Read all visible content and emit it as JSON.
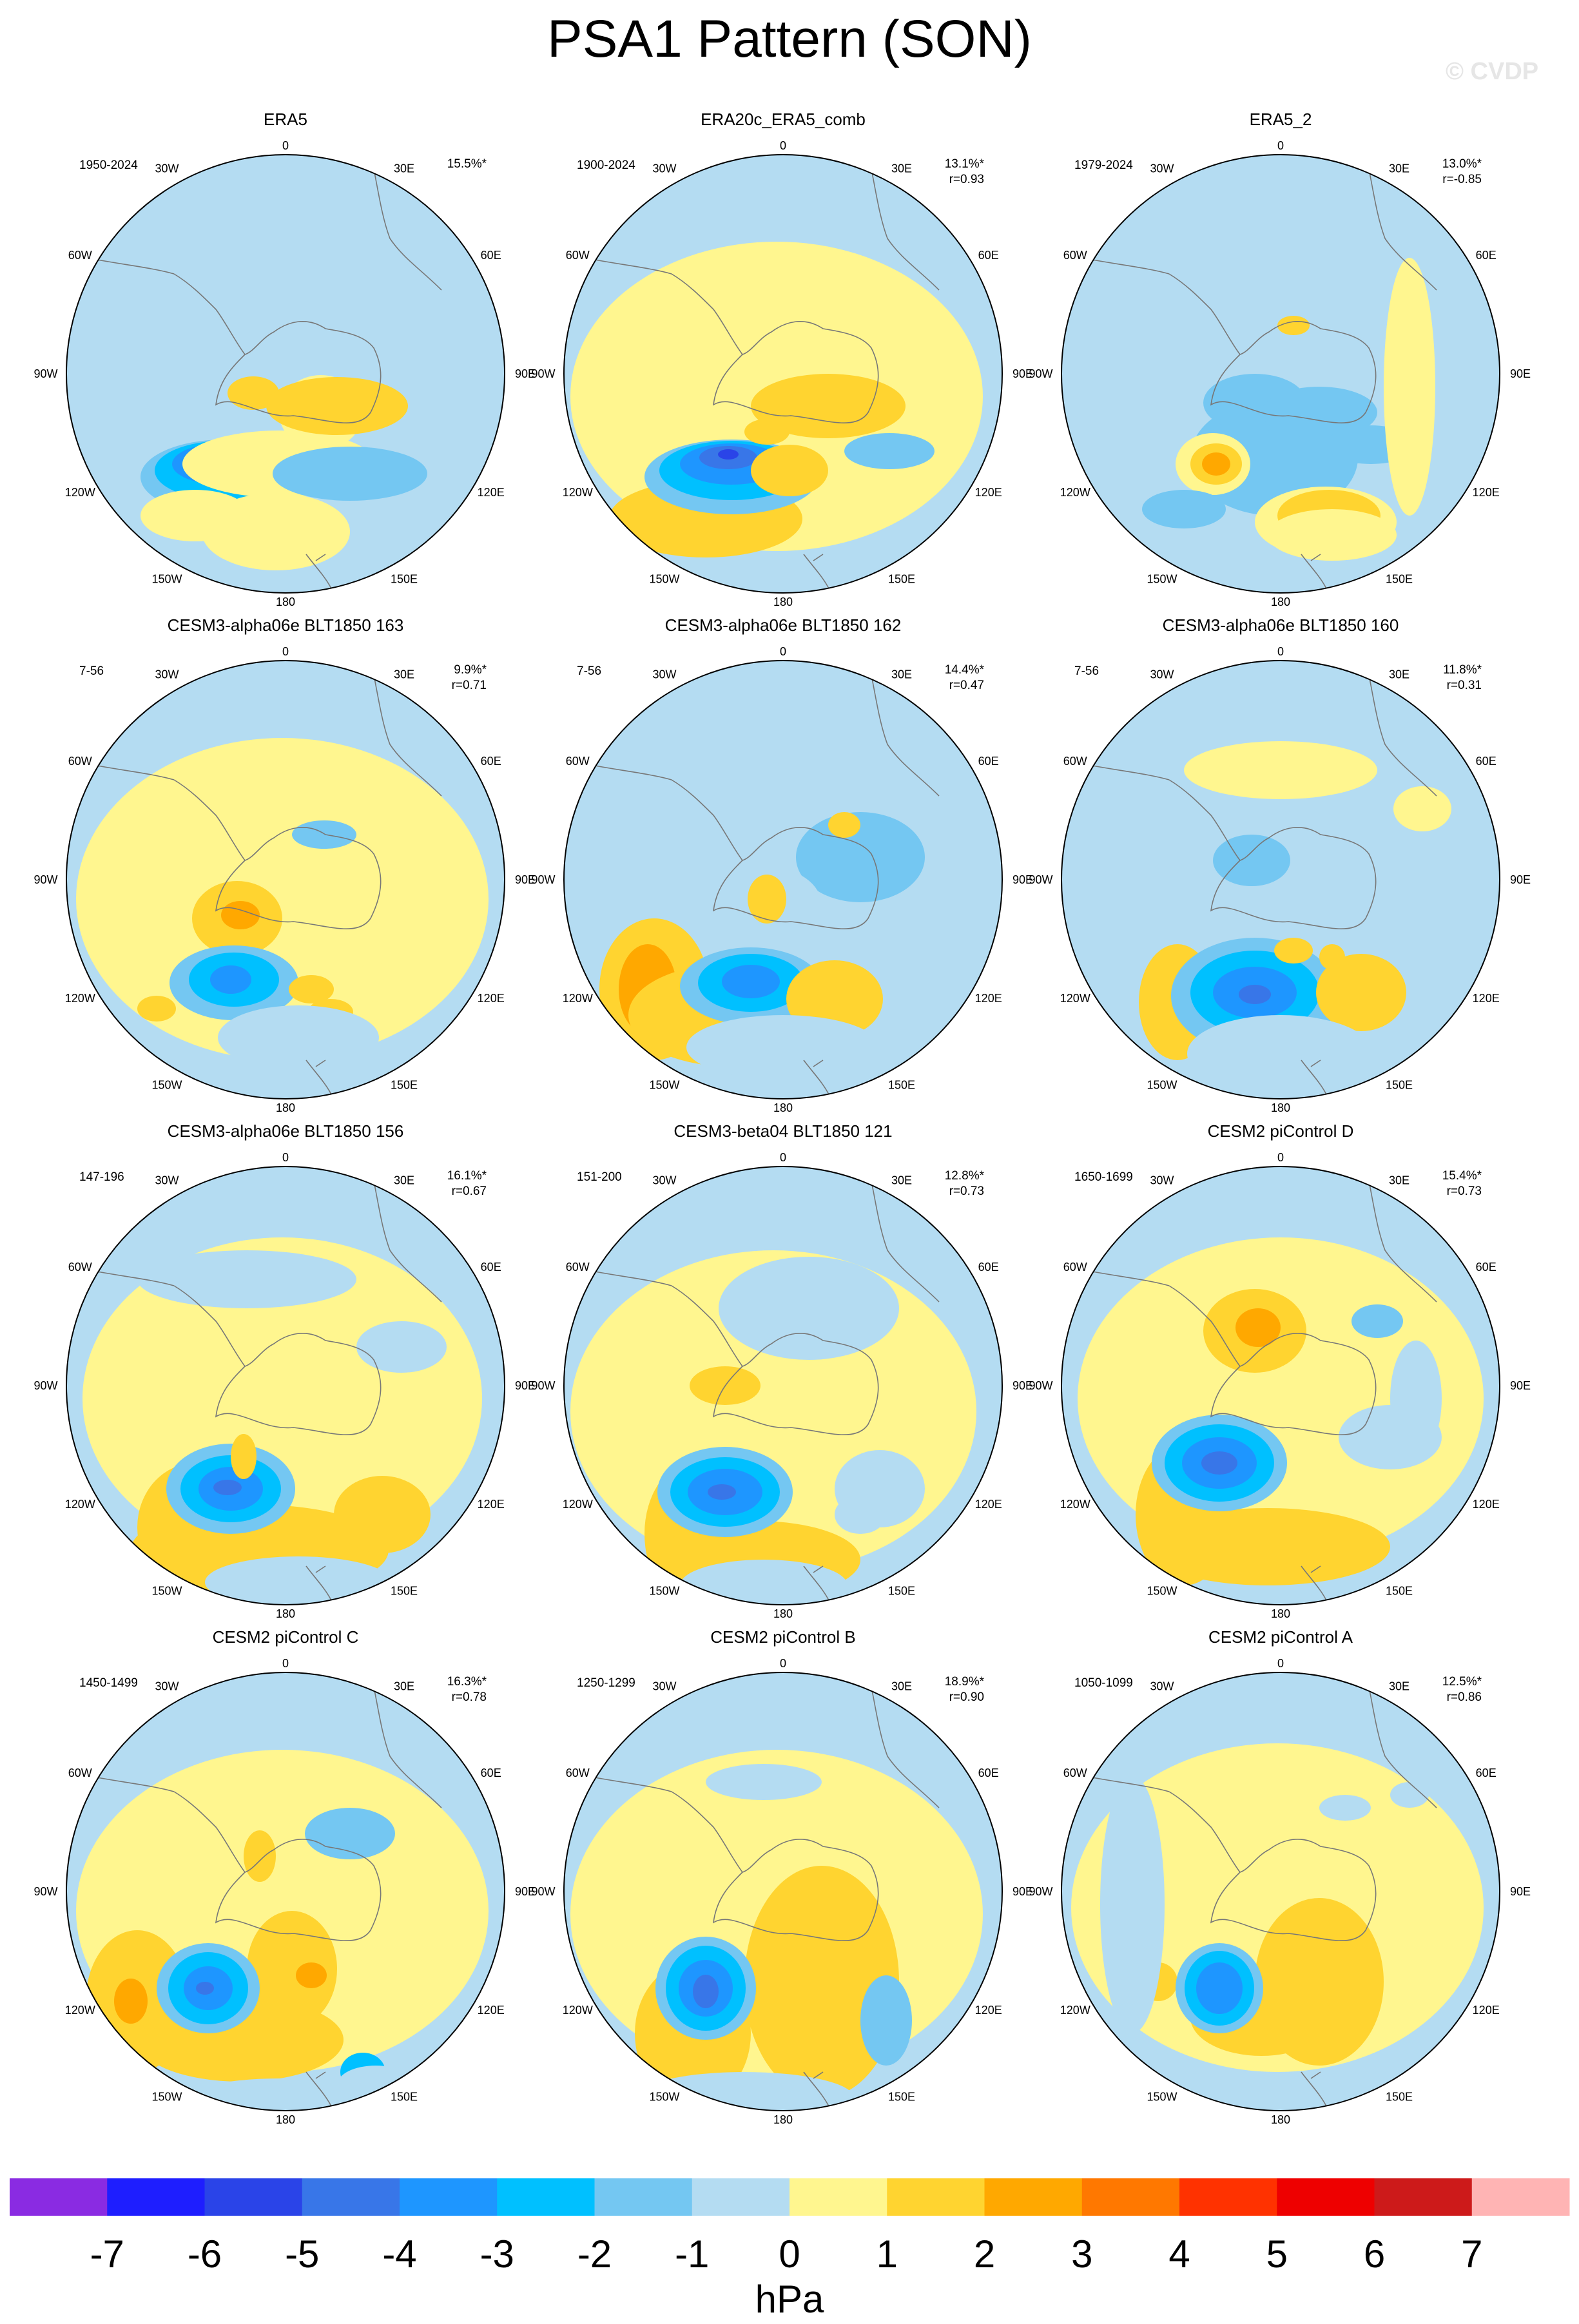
{
  "title": "PSA1 Pattern (SON)",
  "watermark": "© CVDP",
  "chart_data": {
    "type": "heatmap",
    "projection": "south polar stereographic",
    "longitude_labels": [
      "0",
      "30E",
      "60E",
      "90E",
      "120E",
      "150E",
      "180",
      "150W",
      "120W",
      "90W",
      "60W",
      "30W"
    ],
    "panels": [
      {
        "name": "ERA5",
        "years": "1950-2024",
        "pct": "15.5%*",
        "r": ""
      },
      {
        "name": "ERA20c_ERA5_comb",
        "years": "1900-2024",
        "pct": "13.1%*",
        "r": "r=0.93"
      },
      {
        "name": "ERA5_2",
        "years": "1979-2024",
        "pct": "13.0%*",
        "r": "r=-0.85"
      },
      {
        "name": "CESM3-alpha06e BLT1850 163",
        "years": "7-56",
        "pct": "9.9%*",
        "r": "r=0.71"
      },
      {
        "name": "CESM3-alpha06e BLT1850 162",
        "years": "7-56",
        "pct": "14.4%*",
        "r": "r=0.47"
      },
      {
        "name": "CESM3-alpha06e BLT1850 160",
        "years": "7-56",
        "pct": "11.8%*",
        "r": "r=0.31"
      },
      {
        "name": "CESM3-alpha06e BLT1850 156",
        "years": "147-196",
        "pct": "16.1%*",
        "r": "r=0.67"
      },
      {
        "name": "CESM3-beta04 BLT1850 121",
        "years": "151-200",
        "pct": "12.8%*",
        "r": "r=0.73"
      },
      {
        "name": "CESM2 piControl D",
        "years": "1650-1699",
        "pct": "15.4%*",
        "r": "r=0.73"
      },
      {
        "name": "CESM2 piControl C",
        "years": "1450-1499",
        "pct": "16.3%*",
        "r": "r=0.78"
      },
      {
        "name": "CESM2 piControl B",
        "years": "1250-1299",
        "pct": "18.9%*",
        "r": "r=0.90"
      },
      {
        "name": "CESM2 piControl A",
        "years": "1050-1099",
        "pct": "12.5%*",
        "r": "r=0.86"
      }
    ],
    "colorbar": {
      "label": "hPa",
      "ticks": [
        "-7",
        "-6",
        "-5",
        "-4",
        "-3",
        "-2",
        "-1",
        "0",
        "1",
        "2",
        "3",
        "4",
        "5",
        "6",
        "7"
      ],
      "colors": [
        "#8a2be2",
        "#1e1eff",
        "#2a44e8",
        "#3876e8",
        "#1e96ff",
        "#00c0ff",
        "#74c7f2",
        "#b4dcf2",
        "#fff68f",
        "#ffd430",
        "#ffa800",
        "#ff7800",
        "#ff3200",
        "#ee0000",
        "#cd1a1a",
        "#ffb4b4"
      ]
    }
  }
}
